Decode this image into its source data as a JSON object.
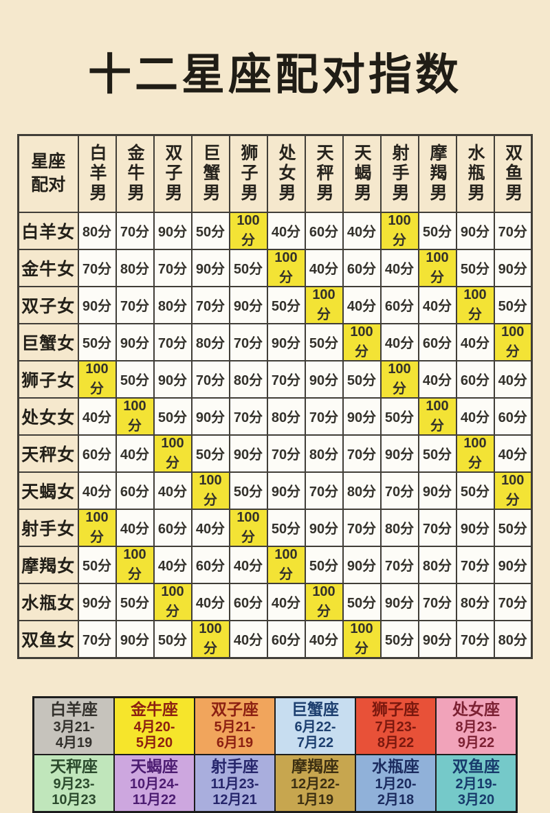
{
  "page": {
    "title": "十二星座配对指数",
    "background_color": "#f5e8cd"
  },
  "table": {
    "corner_label": "星座\n配对",
    "column_headers": [
      "白羊男",
      "金牛男",
      "双子男",
      "巨蟹男",
      "狮子男",
      "处女男",
      "天秤男",
      "天蝎男",
      "射手男",
      "摩羯男",
      "水瓶男",
      "双鱼男"
    ],
    "row_labels": [
      "白羊女",
      "金牛女",
      "双子女",
      "巨蟹女",
      "狮子女",
      "处女女",
      "天秤女",
      "天蝎女",
      "射手女",
      "摩羯女",
      "水瓶女",
      "双鱼女"
    ],
    "unit": "分",
    "highlight_color": "#f3e335",
    "cell_background": "#fdfcf7"
  },
  "chart_data": {
    "type": "heatmap",
    "title": "十二星座配对指数",
    "x_categories": [
      "白羊男",
      "金牛男",
      "双子男",
      "巨蟹男",
      "狮子男",
      "处女男",
      "天秤男",
      "天蝎男",
      "射手男",
      "摩羯男",
      "水瓶男",
      "双鱼男"
    ],
    "y_categories": [
      "白羊女",
      "金牛女",
      "双子女",
      "巨蟹女",
      "狮子女",
      "处女女",
      "天秤女",
      "天蝎女",
      "射手女",
      "摩羯女",
      "水瓶女",
      "双鱼女"
    ],
    "unit": "分",
    "highlight_value": 100,
    "values": [
      [
        80,
        70,
        90,
        50,
        100,
        40,
        60,
        40,
        100,
        50,
        90,
        70
      ],
      [
        70,
        80,
        70,
        90,
        50,
        100,
        40,
        60,
        40,
        100,
        50,
        90
      ],
      [
        90,
        70,
        80,
        70,
        90,
        50,
        100,
        40,
        60,
        40,
        100,
        50
      ],
      [
        50,
        90,
        70,
        80,
        70,
        90,
        50,
        100,
        40,
        60,
        40,
        100
      ],
      [
        100,
        50,
        90,
        70,
        80,
        70,
        90,
        50,
        100,
        40,
        60,
        40
      ],
      [
        40,
        100,
        50,
        90,
        70,
        80,
        70,
        90,
        50,
        100,
        40,
        60
      ],
      [
        60,
        40,
        100,
        50,
        90,
        70,
        80,
        70,
        90,
        50,
        100,
        40
      ],
      [
        40,
        60,
        40,
        100,
        50,
        90,
        70,
        80,
        70,
        90,
        50,
        100
      ],
      [
        100,
        40,
        60,
        40,
        100,
        50,
        90,
        70,
        80,
        70,
        90,
        50
      ],
      [
        50,
        100,
        40,
        60,
        40,
        100,
        50,
        90,
        70,
        80,
        70,
        90
      ],
      [
        90,
        50,
        100,
        40,
        60,
        40,
        100,
        50,
        90,
        70,
        80,
        70
      ],
      [
        70,
        90,
        50,
        100,
        40,
        60,
        40,
        100,
        50,
        90,
        70,
        80
      ]
    ]
  },
  "zodiac_dates": [
    {
      "name": "白羊座",
      "dates": "3月21-\n4月19",
      "bg": "#c6c3bc",
      "fg": "#33312c"
    },
    {
      "name": "金牛座",
      "dates": "4月20-\n5月20",
      "bg": "#f6e52b",
      "fg": "#8c2012"
    },
    {
      "name": "双子座",
      "dates": "5月21-\n6月19",
      "bg": "#f1a55c",
      "fg": "#8c2012"
    },
    {
      "name": "巨蟹座",
      "dates": "6月22-\n7月22",
      "bg": "#c7ddf0",
      "fg": "#1d3f6f"
    },
    {
      "name": "狮子座",
      "dates": "7月23-\n8月22",
      "bg": "#e85138",
      "fg": "#7a180e"
    },
    {
      "name": "处女座",
      "dates": "8月23-\n9月22",
      "bg": "#f1a3ba",
      "fg": "#7c2133"
    },
    {
      "name": "天秤座",
      "dates": "9月23-\n10月23",
      "bg": "#c0e6bb",
      "fg": "#2b4a2d"
    },
    {
      "name": "天蝎座",
      "dates": "10月24-\n11月22",
      "bg": "#cda7df",
      "fg": "#4c1c71"
    },
    {
      "name": "射手座",
      "dates": "11月23-\n12月21",
      "bg": "#a9aedd",
      "fg": "#26266b"
    },
    {
      "name": "摩羯座",
      "dates": "12月22-\n1月19",
      "bg": "#c7a64f",
      "fg": "#3c2f12"
    },
    {
      "name": "水瓶座",
      "dates": "1月20-\n2月18",
      "bg": "#90b1d9",
      "fg": "#1b2b5e"
    },
    {
      "name": "双鱼座",
      "dates": "2月19-\n3月20",
      "bg": "#75c9c9",
      "fg": "#173a6b"
    }
  ]
}
